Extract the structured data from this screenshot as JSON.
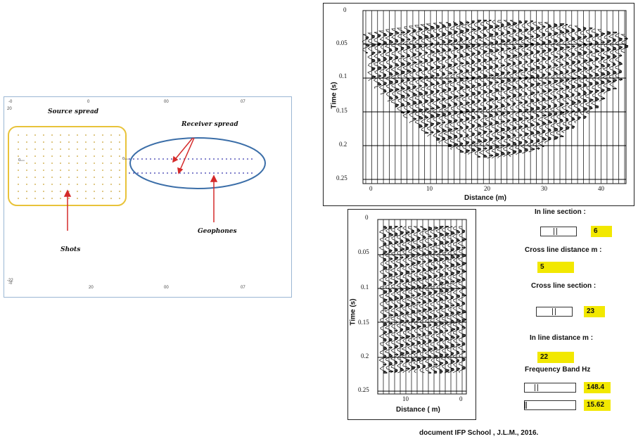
{
  "map": {
    "source_spread_label": "Source spread",
    "receiver_spread_label": "Receiver spread",
    "shots_label": "Shots",
    "geophones_label": "Geophones",
    "top_ticks": [
      "-0",
      "0",
      "00",
      "07"
    ],
    "bottom_ticks": [
      "-0",
      "20",
      "00",
      "07"
    ],
    "left_ticks": [
      "20",
      "-22"
    ],
    "colors": {
      "source_outline": "#e8c33a",
      "receiver_outline": "#3b6ea8",
      "arrow": "#d42a2a",
      "dots_shots": "#c8a030",
      "dots_geophones": "#2a2aa8"
    }
  },
  "top_section": {
    "y_axis_title": "Time (s)",
    "x_axis_title": "Distance (m)",
    "y_ticks": [
      "0",
      "0.05",
      "0.1",
      "0.15",
      "0.2",
      "0.25"
    ],
    "x_ticks": [
      "0",
      "10",
      "20",
      "30",
      "40"
    ]
  },
  "bottom_section": {
    "y_axis_title": "Time (s)",
    "x_axis_title": "Distance ( m)",
    "y_ticks": [
      "0",
      "0.05",
      "0.1",
      "0.15",
      "0.2",
      "0.25"
    ],
    "x_ticks": [
      "10",
      "0"
    ]
  },
  "controls": {
    "inline_section_label": "In line section :",
    "inline_section_value": "6",
    "crossline_distance_label": "Cross line distance m :",
    "crossline_distance_value": "5",
    "crossline_section_label": "Cross line section :",
    "crossline_section_value": "23",
    "inline_distance_label": "In line distance m :",
    "inline_distance_value": "22",
    "frequency_band_label": "Frequency Band Hz",
    "frequency_high_value": "148.4",
    "frequency_low_value": "15.62",
    "value_box_color": "#f2e800"
  },
  "credit": "document IFP School , J.L.M., 2016."
}
